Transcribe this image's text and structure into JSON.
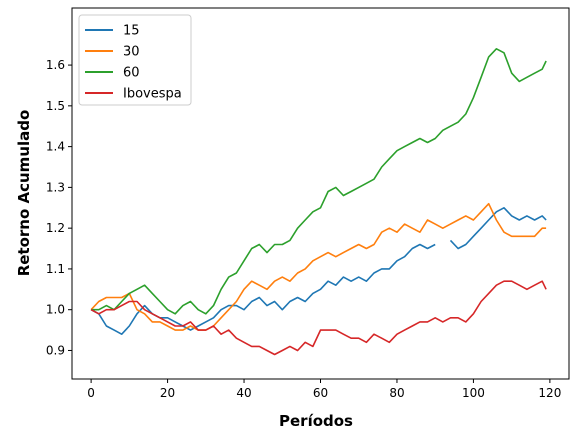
{
  "chart_data": {
    "type": "line",
    "xlabel": "Períodos",
    "ylabel": "Retorno Acumulado",
    "xlim": [
      -5,
      125
    ],
    "ylim": [
      0.83,
      1.74
    ],
    "xticks": [
      0,
      20,
      40,
      60,
      80,
      100,
      120
    ],
    "yticks": [
      0.9,
      1.0,
      1.1,
      1.2,
      1.3,
      1.4,
      1.5,
      1.6
    ],
    "xtick_labels": [
      "0",
      "20",
      "40",
      "60",
      "80",
      "100",
      "120"
    ],
    "ytick_labels": [
      "0.9",
      "1.0",
      "1.1",
      "1.2",
      "1.3",
      "1.4",
      "1.5",
      "1.6"
    ],
    "grid": false,
    "legend_position": "top-left",
    "series": [
      {
        "name": "15",
        "color": "#1f77b4",
        "x": [
          0,
          2,
          4,
          6,
          8,
          10,
          12,
          14,
          16,
          18,
          20,
          22,
          24,
          26,
          28,
          30,
          32,
          34,
          36,
          38,
          40,
          42,
          44,
          46,
          48,
          50,
          52,
          54,
          56,
          58,
          60,
          62,
          64,
          66,
          68,
          70,
          72,
          74,
          76,
          78,
          80,
          82,
          84,
          86,
          88,
          90,
          92,
          94,
          96,
          98,
          100,
          102,
          104,
          106,
          108,
          110,
          112,
          114,
          116,
          118,
          119
        ],
        "y": [
          1.0,
          0.99,
          0.96,
          0.95,
          0.94,
          0.96,
          0.99,
          1.01,
          0.99,
          0.98,
          0.98,
          0.97,
          0.96,
          0.95,
          0.96,
          0.97,
          0.98,
          1.0,
          1.01,
          1.01,
          1.0,
          1.02,
          1.03,
          1.01,
          1.02,
          1.0,
          1.02,
          1.03,
          1.02,
          1.04,
          1.05,
          1.07,
          1.06,
          1.08,
          1.07,
          1.08,
          1.07,
          1.09,
          1.1,
          1.1,
          1.12,
          1.13,
          1.15,
          1.16,
          1.15,
          1.16,
          null,
          1.17,
          1.15,
          1.16,
          1.18,
          1.2,
          1.22,
          1.24,
          1.25,
          1.23,
          1.22,
          1.23,
          1.22,
          1.23,
          1.22
        ]
      },
      {
        "name": "30",
        "color": "#ff7f0e",
        "x": [
          0,
          2,
          4,
          6,
          8,
          10,
          12,
          14,
          16,
          18,
          20,
          22,
          24,
          26,
          28,
          30,
          32,
          34,
          36,
          38,
          40,
          42,
          44,
          46,
          48,
          50,
          52,
          54,
          56,
          58,
          60,
          62,
          64,
          66,
          68,
          70,
          72,
          74,
          76,
          78,
          80,
          82,
          84,
          86,
          88,
          90,
          92,
          94,
          96,
          98,
          100,
          102,
          104,
          106,
          108,
          110,
          112,
          114,
          116,
          118,
          119
        ],
        "y": [
          1.0,
          1.02,
          1.03,
          1.03,
          1.03,
          1.04,
          1.0,
          0.99,
          0.97,
          0.97,
          0.96,
          0.95,
          0.95,
          0.96,
          0.95,
          0.95,
          0.96,
          0.98,
          1.0,
          1.02,
          1.05,
          1.07,
          1.06,
          1.05,
          1.07,
          1.08,
          1.07,
          1.09,
          1.1,
          1.12,
          1.13,
          1.14,
          1.13,
          1.14,
          1.15,
          1.16,
          1.15,
          1.16,
          1.19,
          1.2,
          1.19,
          1.21,
          1.2,
          1.19,
          1.22,
          1.21,
          1.2,
          1.21,
          1.22,
          1.23,
          1.22,
          1.24,
          1.26,
          1.22,
          1.19,
          1.18,
          1.18,
          1.18,
          1.18,
          1.2,
          1.2
        ]
      },
      {
        "name": "60",
        "color": "#2ca02c",
        "x": [
          0,
          2,
          4,
          6,
          8,
          10,
          12,
          14,
          16,
          18,
          20,
          22,
          24,
          26,
          28,
          30,
          32,
          34,
          36,
          38,
          40,
          42,
          44,
          46,
          48,
          50,
          52,
          54,
          56,
          58,
          60,
          62,
          64,
          66,
          68,
          70,
          72,
          74,
          76,
          78,
          80,
          82,
          84,
          86,
          88,
          90,
          92,
          94,
          96,
          98,
          100,
          102,
          104,
          106,
          108,
          110,
          112,
          114,
          116,
          118,
          119
        ],
        "y": [
          1.0,
          1.0,
          1.01,
          1.0,
          1.02,
          1.04,
          1.05,
          1.06,
          1.04,
          1.02,
          1.0,
          0.99,
          1.01,
          1.02,
          1.0,
          0.99,
          1.01,
          1.05,
          1.08,
          1.09,
          1.12,
          1.15,
          1.16,
          1.14,
          1.16,
          1.16,
          1.17,
          1.2,
          1.22,
          1.24,
          1.25,
          1.29,
          1.3,
          1.28,
          1.29,
          1.3,
          1.31,
          1.32,
          1.35,
          1.37,
          1.39,
          1.4,
          1.41,
          1.42,
          1.41,
          1.42,
          1.44,
          1.45,
          1.46,
          1.48,
          1.52,
          1.57,
          1.62,
          1.64,
          1.63,
          1.58,
          1.56,
          1.57,
          1.58,
          1.59,
          1.61
        ]
      },
      {
        "name": "Ibovespa",
        "color": "#d62728",
        "x": [
          0,
          2,
          4,
          6,
          8,
          10,
          12,
          14,
          16,
          18,
          20,
          22,
          24,
          26,
          28,
          30,
          32,
          34,
          36,
          38,
          40,
          42,
          44,
          46,
          48,
          50,
          52,
          54,
          56,
          58,
          60,
          62,
          64,
          66,
          68,
          70,
          72,
          74,
          76,
          78,
          80,
          82,
          84,
          86,
          88,
          90,
          92,
          94,
          96,
          98,
          100,
          102,
          104,
          106,
          108,
          110,
          112,
          114,
          116,
          118,
          119
        ],
        "y": [
          1.0,
          0.99,
          1.0,
          1.0,
          1.01,
          1.02,
          1.02,
          1.0,
          0.99,
          0.98,
          0.97,
          0.96,
          0.96,
          0.97,
          0.95,
          0.95,
          0.96,
          0.94,
          0.95,
          0.93,
          0.92,
          0.91,
          0.91,
          0.9,
          0.89,
          0.9,
          0.91,
          0.9,
          0.92,
          0.91,
          0.95,
          0.95,
          0.95,
          0.94,
          0.93,
          0.93,
          0.92,
          0.94,
          0.93,
          0.92,
          0.94,
          0.95,
          0.96,
          0.97,
          0.97,
          0.98,
          0.97,
          0.98,
          0.98,
          0.97,
          0.99,
          1.02,
          1.04,
          1.06,
          1.07,
          1.07,
          1.06,
          1.05,
          1.06,
          1.07,
          1.05
        ]
      }
    ]
  }
}
